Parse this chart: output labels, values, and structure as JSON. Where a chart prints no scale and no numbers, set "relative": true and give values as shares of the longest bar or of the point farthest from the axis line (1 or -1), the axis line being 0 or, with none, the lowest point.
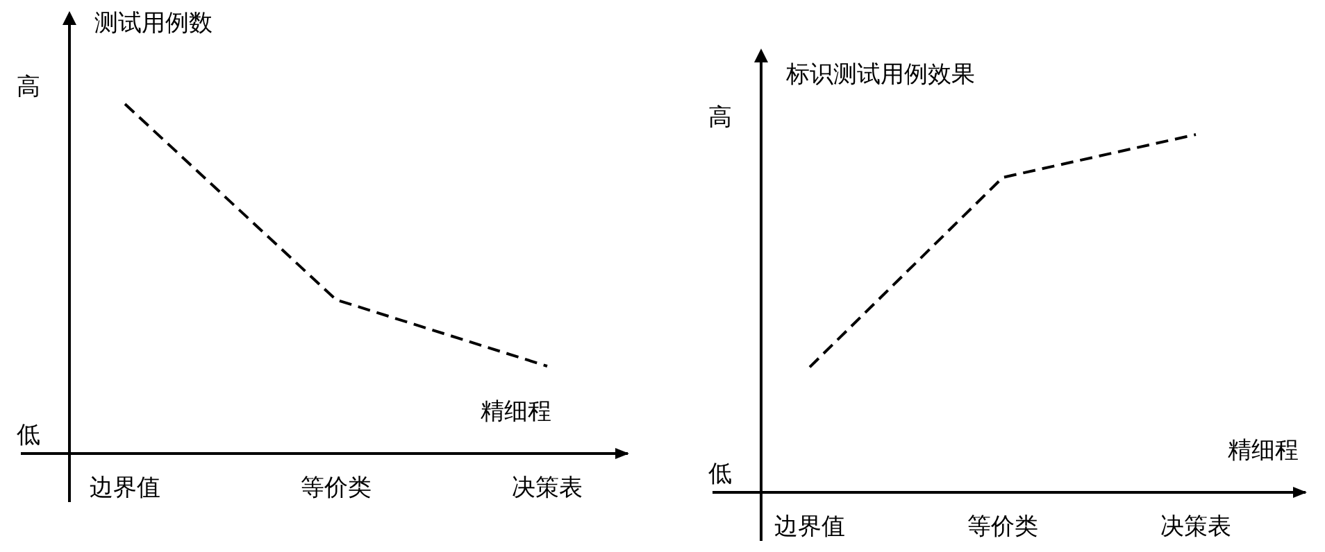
{
  "chart_data": [
    {
      "type": "line",
      "relative": true,
      "categories": [
        "边界值",
        "等价类",
        "决策表"
      ],
      "ylabel": "测试用例数",
      "xlabel": "精细程",
      "annotations": [
        "高",
        "低"
      ],
      "line_style": "dashed",
      "marker": "none",
      "grid": false,
      "series": [
        {
          "color": "#000000",
          "values": [
            1,
            0.44,
            0.25
          ]
        }
      ]
    },
    {
      "type": "line",
      "relative": true,
      "categories": [
        "边界值",
        "等价类",
        "决策表"
      ],
      "ylabel": "标识测试用例效果",
      "xlabel": "精细程",
      "annotations": [
        "高",
        "低"
      ],
      "line_style": "dashed",
      "marker": "none",
      "grid": false,
      "series": [
        {
          "color": "#000000",
          "values": [
            0.35,
            0.88,
            1
          ]
        }
      ]
    }
  ]
}
